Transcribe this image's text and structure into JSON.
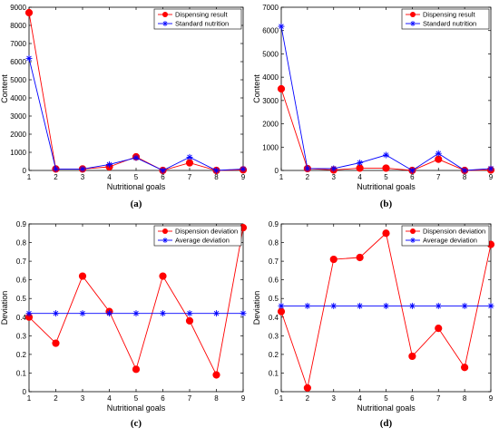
{
  "figure": {
    "captions": [
      "(a)",
      "(b)",
      "(c)",
      "(d)"
    ]
  },
  "colors": {
    "red_series": "#ff0000",
    "blue_series": "#0000ff",
    "axis": "#000000",
    "grid": "#ffffff"
  },
  "chart_data": [
    {
      "type": "line",
      "caption": "(a)",
      "x": [
        1,
        2,
        3,
        4,
        5,
        6,
        7,
        8,
        9
      ],
      "xlabel": "Nutritional goals",
      "ylabel": "Content",
      "xlim": [
        1,
        9
      ],
      "ylim": [
        0,
        9000
      ],
      "xticks": [
        "1",
        "2",
        "3",
        "4",
        "5",
        "6",
        "7",
        "8",
        "9"
      ],
      "yticks": [
        "0",
        "1000",
        "2000",
        "3000",
        "4000",
        "5000",
        "6000",
        "7000",
        "8000",
        "9000"
      ],
      "legend_position": "top-right",
      "grid": false,
      "series": [
        {
          "name": "Dispensing result",
          "color": "#ff0000",
          "marker": "circle",
          "values": [
            8700,
            80,
            80,
            200,
            750,
            0,
            420,
            0,
            30
          ]
        },
        {
          "name": "Standard nutrition",
          "color": "#0000ff",
          "marker": "asterisk",
          "values": [
            6180,
            80,
            80,
            330,
            700,
            0,
            730,
            0,
            80
          ]
        }
      ]
    },
    {
      "type": "line",
      "caption": "(b)",
      "x": [
        1,
        2,
        3,
        4,
        5,
        6,
        7,
        8,
        9
      ],
      "xlabel": "Nutritional goals",
      "ylabel": "Content",
      "xlim": [
        1,
        9
      ],
      "ylim": [
        0,
        7000
      ],
      "xticks": [
        "1",
        "2",
        "3",
        "4",
        "5",
        "6",
        "7",
        "8",
        "9"
      ],
      "yticks": [
        "0",
        "1000",
        "2000",
        "3000",
        "4000",
        "5000",
        "6000",
        "7000"
      ],
      "legend_position": "top-right",
      "grid": false,
      "series": [
        {
          "name": "Dispensing result",
          "color": "#ff0000",
          "marker": "circle",
          "values": [
            3500,
            80,
            20,
            100,
            100,
            0,
            480,
            0,
            20
          ]
        },
        {
          "name": "Standard nutrition",
          "color": "#0000ff",
          "marker": "asterisk",
          "values": [
            6180,
            80,
            80,
            330,
            660,
            0,
            730,
            0,
            80
          ]
        }
      ]
    },
    {
      "type": "line",
      "caption": "(c)",
      "x": [
        1,
        2,
        3,
        4,
        5,
        6,
        7,
        8,
        9
      ],
      "xlabel": "Nutritional goals",
      "ylabel": "Deviation",
      "xlim": [
        1,
        9
      ],
      "ylim": [
        0,
        0.9
      ],
      "xticks": [
        "1",
        "2",
        "3",
        "4",
        "5",
        "6",
        "7",
        "8",
        "9"
      ],
      "yticks": [
        "0",
        "0.1",
        "0.2",
        "0.3",
        "0.4",
        "0.5",
        "0.6",
        "0.7",
        "0.8",
        "0.9"
      ],
      "legend_position": "top-right",
      "grid": false,
      "series": [
        {
          "name": "Dispension deviation",
          "color": "#ff0000",
          "marker": "circle",
          "values": [
            0.4,
            0.26,
            0.62,
            0.43,
            0.12,
            0.62,
            0.38,
            0.09,
            0.88
          ]
        },
        {
          "name": "Average deviation",
          "color": "#0000ff",
          "marker": "asterisk",
          "values": [
            0.42,
            0.42,
            0.42,
            0.42,
            0.42,
            0.42,
            0.42,
            0.42,
            0.42
          ]
        }
      ]
    },
    {
      "type": "line",
      "caption": "(d)",
      "x": [
        1,
        2,
        3,
        4,
        5,
        6,
        7,
        8,
        9
      ],
      "xlabel": "Nutritional goals",
      "ylabel": "Deviation",
      "xlim": [
        1,
        9
      ],
      "ylim": [
        0,
        0.9
      ],
      "xticks": [
        "1",
        "2",
        "3",
        "4",
        "5",
        "6",
        "7",
        "8",
        "9"
      ],
      "yticks": [
        "0",
        "0.1",
        "0.2",
        "0.3",
        "0.4",
        "0.5",
        "0.6",
        "0.7",
        "0.8",
        "0.9"
      ],
      "legend_position": "top-right",
      "grid": false,
      "series": [
        {
          "name": "Dispension deviation",
          "color": "#ff0000",
          "marker": "circle",
          "values": [
            0.43,
            0.02,
            0.71,
            0.72,
            0.85,
            0.19,
            0.34,
            0.13,
            0.79
          ]
        },
        {
          "name": "Average deviation",
          "color": "#0000ff",
          "marker": "asterisk",
          "values": [
            0.46,
            0.46,
            0.46,
            0.46,
            0.46,
            0.46,
            0.46,
            0.46,
            0.46
          ]
        }
      ]
    }
  ]
}
